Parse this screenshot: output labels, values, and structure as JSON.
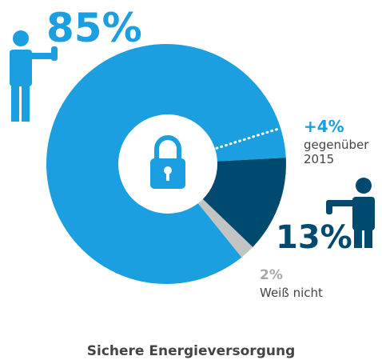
{
  "chart_data": {
    "type": "pie",
    "title": "Sichere Energieversorgung",
    "categories": [
      null,
      null,
      "Weiß nicht"
    ],
    "values": [
      85,
      13,
      2
    ],
    "value_labels": [
      "85%",
      "13%",
      "2%"
    ],
    "colors": [
      "#1b9fe1",
      "#004a6f",
      "#c3c3c3"
    ],
    "annotation": {
      "change": 4,
      "change_label": "+4%",
      "text": [
        "gegenüber",
        "2015"
      ]
    }
  }
}
